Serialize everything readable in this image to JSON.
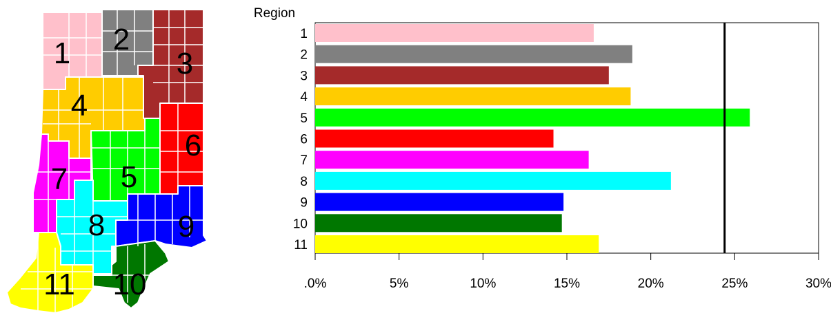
{
  "map": {
    "regions": [
      {
        "label": "1",
        "color": "#ffc0cb"
      },
      {
        "label": "2",
        "color": "#808080"
      },
      {
        "label": "3",
        "color": "#a52a2a"
      },
      {
        "label": "4",
        "color": "#ffcc00"
      },
      {
        "label": "5",
        "color": "#00ff00"
      },
      {
        "label": "6",
        "color": "#ff0000"
      },
      {
        "label": "7",
        "color": "#ff00ff"
      },
      {
        "label": "8",
        "color": "#00ffff"
      },
      {
        "label": "9",
        "color": "#0000ff"
      },
      {
        "label": "10",
        "color": "#007700"
      },
      {
        "label": "11",
        "color": "#ffff00"
      }
    ]
  },
  "chart_data": {
    "type": "bar",
    "orientation": "horizontal",
    "ylabel": "Region",
    "categories": [
      "1",
      "2",
      "3",
      "4",
      "5",
      "6",
      "7",
      "8",
      "9",
      "10",
      "11"
    ],
    "values": [
      16.6,
      18.9,
      17.5,
      18.8,
      25.9,
      14.2,
      16.3,
      21.2,
      14.8,
      14.7,
      16.9
    ],
    "colors": [
      "#ffc0cb",
      "#808080",
      "#a52a2a",
      "#ffcc00",
      "#00ff00",
      "#ff0000",
      "#ff00ff",
      "#00ffff",
      "#0000ff",
      "#007700",
      "#ffff00"
    ],
    "xlim": [
      0,
      30
    ],
    "xticks": [
      0,
      5,
      10,
      15,
      20,
      25,
      30
    ],
    "xtick_labels": [
      ".0%",
      "5%",
      "10%",
      "15%",
      "20%",
      "25%",
      "30%"
    ],
    "reference_line": 24.4,
    "grid": false,
    "legend": "none"
  }
}
